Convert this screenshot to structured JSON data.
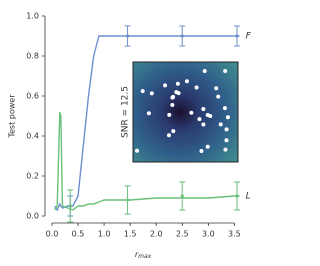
{
  "chart_data": {
    "type": "line",
    "ylabel": "Test power",
    "xlabel": {
      "base": "r",
      "sub": "max"
    },
    "x": [
      0.05,
      0.1,
      0.15,
      0.17,
      0.2,
      0.3,
      0.4,
      0.5,
      0.6,
      0.7,
      0.8,
      0.9,
      1.0,
      1.5,
      2.0,
      2.5,
      3.0,
      3.5,
      3.6
    ],
    "series": [
      {
        "name": "F",
        "color": "#6f8fcf",
        "values": [
          0.05,
          0.03,
          0.06,
          0.05,
          0.04,
          0.05,
          0.05,
          0.1,
          0.35,
          0.6,
          0.8,
          0.9,
          0.9,
          0.9,
          0.9,
          0.9,
          0.9,
          0.9,
          0.9
        ],
        "err_x": [
          0.35,
          1.45,
          2.5,
          3.55
        ],
        "err_values": [
          0.05,
          0.9,
          0.9,
          0.9
        ],
        "errors": [
          0.05,
          0.05,
          0.05,
          0.05
        ]
      },
      {
        "name": "L",
        "color": "#6abf7b",
        "values": [
          0.03,
          0.05,
          0.52,
          0.5,
          0.05,
          0.04,
          0.03,
          0.05,
          0.05,
          0.06,
          0.06,
          0.07,
          0.08,
          0.08,
          0.09,
          0.09,
          0.09,
          0.1,
          0.1
        ],
        "err_x": [
          0.35,
          1.45,
          2.5,
          3.55
        ],
        "err_values": [
          0.05,
          0.08,
          0.1,
          0.1
        ],
        "errors": [
          0.08,
          0.07,
          0.07,
          0.07
        ]
      }
    ],
    "xlim": [
      0,
      3.8
    ],
    "ylim": [
      0,
      1.0
    ],
    "xticks": [
      {
        "value": 0,
        "label": "0.0"
      },
      0.5,
      {
        "value": 1,
        "label": "1.0"
      },
      1.5,
      {
        "value": 2,
        "label": "2.0"
      },
      2.5,
      {
        "value": 3,
        "label": "3.0"
      },
      3.5
    ],
    "yticks": [
      {
        "value": 0,
        "label": "0.0"
      },
      0.2,
      0.4,
      0.6,
      0.8,
      {
        "value": 1,
        "label": "1.0"
      }
    ],
    "inset": {
      "label": "SNR = 12.5"
    }
  }
}
